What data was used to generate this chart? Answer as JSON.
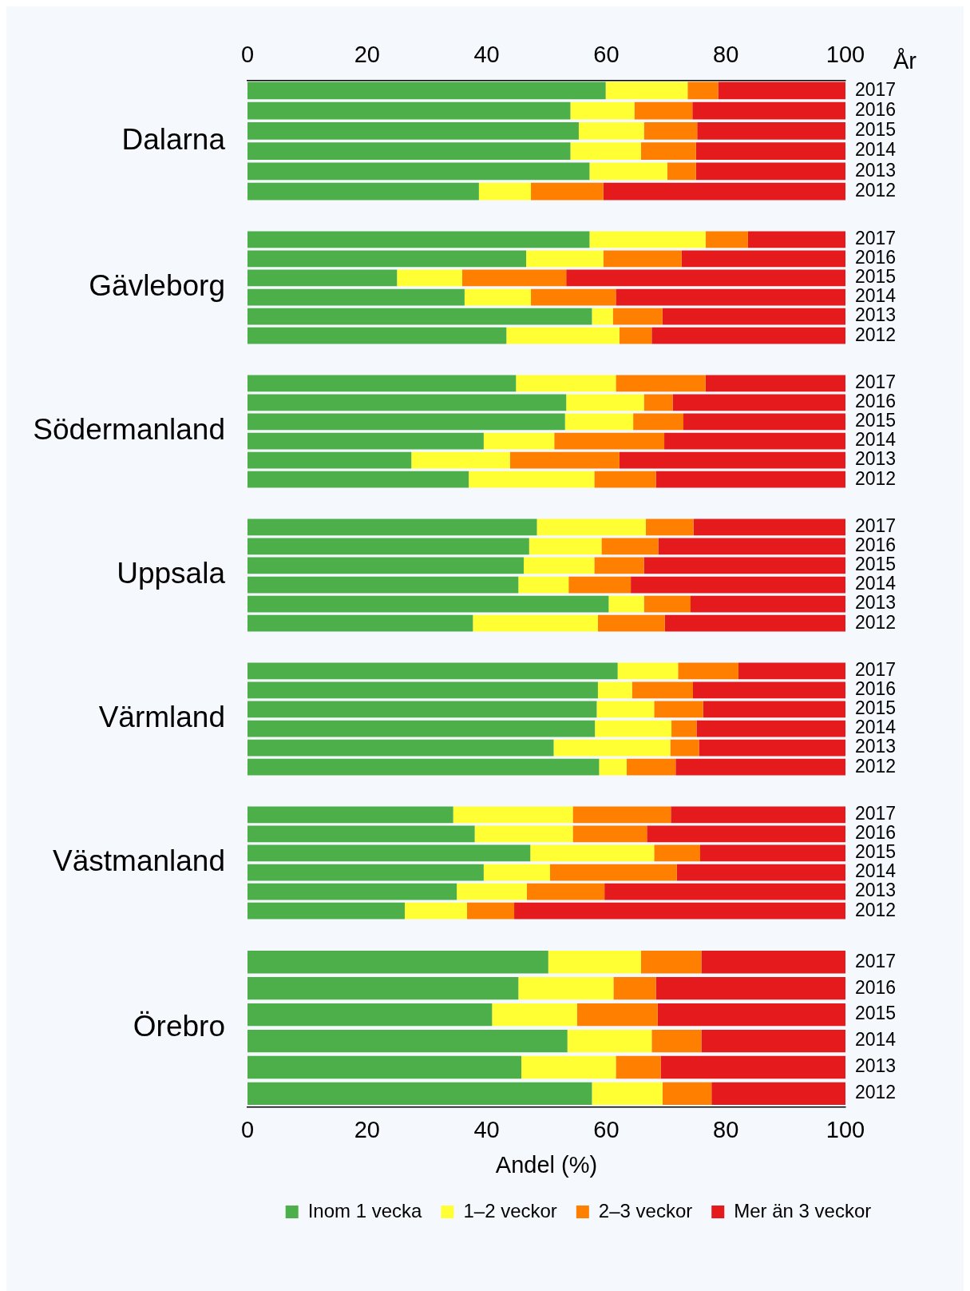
{
  "chart_data": [
    {
      "type": "bar",
      "orientation": "horizontal",
      "stacked": true,
      "title": "Dalarna",
      "categories": [
        "2017",
        "2016",
        "2015",
        "2014",
        "2013",
        "2012"
      ],
      "xlim": [
        0,
        100
      ],
      "x2lim": [
        0,
        100
      ],
      "x2ticks": [
        0,
        20,
        40,
        60,
        80,
        100
      ],
      "tick_labels": "y",
      "annotations": [
        "År"
      ],
      "series": [
        {
          "color": "#4daf4a",
          "values": [
            59.9,
            54.0,
            55.4,
            54.0,
            57.2,
            38.7
          ]
        },
        {
          "color": "#ffff33",
          "values": [
            13.7,
            10.7,
            10.9,
            11.8,
            13.0,
            8.7
          ]
        },
        {
          "color": "#ff7f00",
          "values": [
            5.1,
            9.7,
            8.9,
            9.2,
            4.8,
            12.1
          ]
        },
        {
          "color": "#e41a1c",
          "values": [
            21.3,
            25.6,
            24.8,
            25.0,
            25.0,
            40.5
          ]
        }
      ]
    },
    {
      "type": "bar",
      "orientation": "horizontal",
      "stacked": true,
      "title": "Gävleborg",
      "categories": [
        "2017",
        "2016",
        "2015",
        "2014",
        "2013",
        "2012"
      ],
      "xlim": [
        0,
        100
      ],
      "tick_labels": "y",
      "series": [
        {
          "color": "#4daf4a",
          "values": [
            57.2,
            46.6,
            25.0,
            36.3,
            57.6,
            43.3
          ]
        },
        {
          "color": "#ffff33",
          "values": [
            19.4,
            12.9,
            10.9,
            11.1,
            3.5,
            18.9
          ]
        },
        {
          "color": "#ff7f00",
          "values": [
            7.1,
            13.1,
            17.4,
            14.2,
            8.3,
            5.4
          ]
        },
        {
          "color": "#e41a1c",
          "values": [
            16.3,
            27.4,
            46.7,
            38.4,
            30.6,
            32.4
          ]
        }
      ]
    },
    {
      "type": "bar",
      "orientation": "horizontal",
      "stacked": true,
      "title": "Södermanland",
      "categories": [
        "2017",
        "2016",
        "2015",
        "2014",
        "2013",
        "2012"
      ],
      "xlim": [
        0,
        100
      ],
      "tick_labels": "y",
      "series": [
        {
          "color": "#4daf4a",
          "values": [
            44.9,
            53.3,
            53.1,
            39.5,
            27.4,
            37.0
          ]
        },
        {
          "color": "#ffff33",
          "values": [
            16.7,
            13.0,
            11.4,
            11.8,
            16.5,
            21.0
          ]
        },
        {
          "color": "#ff7f00",
          "values": [
            15.0,
            4.8,
            8.4,
            18.4,
            18.3,
            10.3
          ]
        },
        {
          "color": "#e41a1c",
          "values": [
            23.4,
            28.9,
            27.1,
            30.3,
            37.8,
            31.7
          ]
        }
      ]
    },
    {
      "type": "bar",
      "orientation": "horizontal",
      "stacked": true,
      "title": "Uppsala",
      "categories": [
        "2017",
        "2016",
        "2015",
        "2014",
        "2013",
        "2012"
      ],
      "xlim": [
        0,
        100
      ],
      "tick_labels": "y",
      "series": [
        {
          "color": "#4daf4a",
          "values": [
            48.4,
            47.1,
            46.2,
            45.3,
            60.4,
            37.7
          ]
        },
        {
          "color": "#ffff33",
          "values": [
            18.2,
            12.1,
            11.8,
            8.4,
            5.9,
            20.9
          ]
        },
        {
          "color": "#ff7f00",
          "values": [
            8.0,
            9.5,
            8.3,
            10.4,
            7.8,
            11.2
          ]
        },
        {
          "color": "#e41a1c",
          "values": [
            25.4,
            31.3,
            33.7,
            35.9,
            25.9,
            30.2
          ]
        }
      ]
    },
    {
      "type": "bar",
      "orientation": "horizontal",
      "stacked": true,
      "title": "Värmland",
      "categories": [
        "2017",
        "2016",
        "2015",
        "2014",
        "2013",
        "2012"
      ],
      "xlim": [
        0,
        100
      ],
      "tick_labels": "y",
      "series": [
        {
          "color": "#4daf4a",
          "values": [
            61.9,
            58.6,
            58.4,
            58.1,
            51.2,
            58.8
          ]
        },
        {
          "color": "#ffff33",
          "values": [
            10.1,
            5.7,
            9.6,
            12.8,
            19.5,
            4.6
          ]
        },
        {
          "color": "#ff7f00",
          "values": [
            10.1,
            10.2,
            8.2,
            4.2,
            4.8,
            8.2
          ]
        },
        {
          "color": "#e41a1c",
          "values": [
            17.9,
            25.5,
            23.8,
            24.9,
            24.5,
            28.4
          ]
        }
      ]
    },
    {
      "type": "bar",
      "orientation": "horizontal",
      "stacked": true,
      "title": "Västmanland",
      "categories": [
        "2017",
        "2016",
        "2015",
        "2014",
        "2013",
        "2012"
      ],
      "xlim": [
        0,
        100
      ],
      "tick_labels": "y",
      "series": [
        {
          "color": "#4daf4a",
          "values": [
            34.4,
            38.0,
            47.3,
            39.5,
            35.0,
            26.3
          ]
        },
        {
          "color": "#ffff33",
          "values": [
            20.0,
            16.4,
            20.7,
            11.1,
            11.7,
            10.4
          ]
        },
        {
          "color": "#ff7f00",
          "values": [
            16.4,
            12.4,
            7.7,
            21.2,
            13.0,
            7.9
          ]
        },
        {
          "color": "#e41a1c",
          "values": [
            29.2,
            33.2,
            24.3,
            28.2,
            40.3,
            55.4
          ]
        }
      ]
    },
    {
      "type": "bar",
      "orientation": "horizontal",
      "stacked": true,
      "title": "Örebro",
      "categories": [
        "2017",
        "2016",
        "2015",
        "2014",
        "2013",
        "2012"
      ],
      "xlim": [
        0,
        100
      ],
      "xticks": [
        0,
        20,
        40,
        60,
        80,
        100
      ],
      "xlabel": "Andel (%)",
      "legend": "bottom",
      "series": [
        {
          "name": "Inom 1 vecka",
          "color": "#4daf4a",
          "values": [
            50.3,
            45.3,
            40.9,
            53.5,
            45.8,
            57.6
          ]
        },
        {
          "name": "1–2 veckor",
          "color": "#ffff33",
          "values": [
            15.5,
            15.9,
            14.2,
            14.1,
            15.8,
            11.8
          ]
        },
        {
          "name": "2–3 veckor",
          "color": "#ff7f00",
          "values": [
            10.1,
            7.1,
            13.5,
            8.3,
            7.5,
            8.2
          ]
        },
        {
          "name": "Mer än 3 veckor",
          "color": "#e41a1c",
          "values": [
            24.1,
            31.7,
            31.4,
            24.1,
            30.9,
            22.4
          ]
        }
      ]
    }
  ]
}
